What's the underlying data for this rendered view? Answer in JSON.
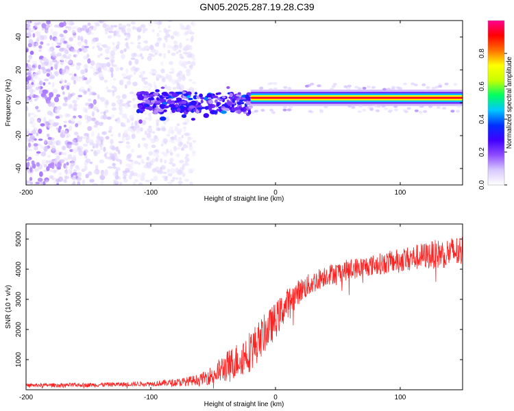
{
  "title": "GN05.2025.287.19.28.C39",
  "chart_data": [
    {
      "type": "heatmap",
      "name": "spectrogram",
      "xlabel": "Height of straight line (km)",
      "ylabel": "Frequency (Hz)",
      "xlim": [
        -200,
        150
      ],
      "ylim": [
        -50,
        50
      ],
      "xticks": [
        -200,
        -100,
        0,
        100
      ],
      "yticks": [
        -40,
        -20,
        0,
        20,
        40
      ],
      "colorbar": {
        "label": "Normalized spectral amplitude",
        "range": [
          0,
          1
        ],
        "ticks": [
          0.0,
          0.2,
          0.4,
          0.6,
          0.8
        ],
        "colormap": [
          "#ffffff",
          "#d8c8ff",
          "#8f4cff",
          "#4000ff",
          "#0030ff",
          "#00c8ff",
          "#00ff60",
          "#c8ff00",
          "#ffff00",
          "#ff7000",
          "#ff0000",
          "#ff0090"
        ]
      },
      "features": {
        "noise_region_km": [
          -200,
          -65
        ],
        "scattered_region_km": [
          -110,
          -20
        ],
        "line_start_km": -20,
        "line_frequency_hz": 3
      }
    },
    {
      "type": "line",
      "name": "snr",
      "xlabel": "Height of straight line (km)",
      "ylabel": "SNR (10 * v/v)",
      "xlim": [
        -200,
        150
      ],
      "ylim": [
        0,
        5500
      ],
      "xticks": [
        -200,
        -100,
        0,
        100
      ],
      "yticks": [
        1000,
        2000,
        3000,
        4000,
        5000
      ],
      "color": "#ff2020",
      "trend": {
        "x": [
          -200,
          -150,
          -100,
          -75,
          -60,
          -50,
          -40,
          -30,
          -20,
          -10,
          0,
          10,
          20,
          30,
          40,
          60,
          80,
          100,
          120,
          150
        ],
        "y": [
          150,
          160,
          200,
          250,
          350,
          500,
          750,
          1000,
          1300,
          1800,
          2300,
          2900,
          3300,
          3550,
          3800,
          4000,
          4150,
          4300,
          4450,
          4600
        ]
      },
      "spread": {
        "x": [
          -200,
          -100,
          -60,
          -40,
          -20,
          0,
          20,
          40,
          80,
          120,
          150
        ],
        "y": [
          60,
          80,
          180,
          500,
          700,
          600,
          400,
          350,
          350,
          450,
          550
        ]
      }
    }
  ]
}
